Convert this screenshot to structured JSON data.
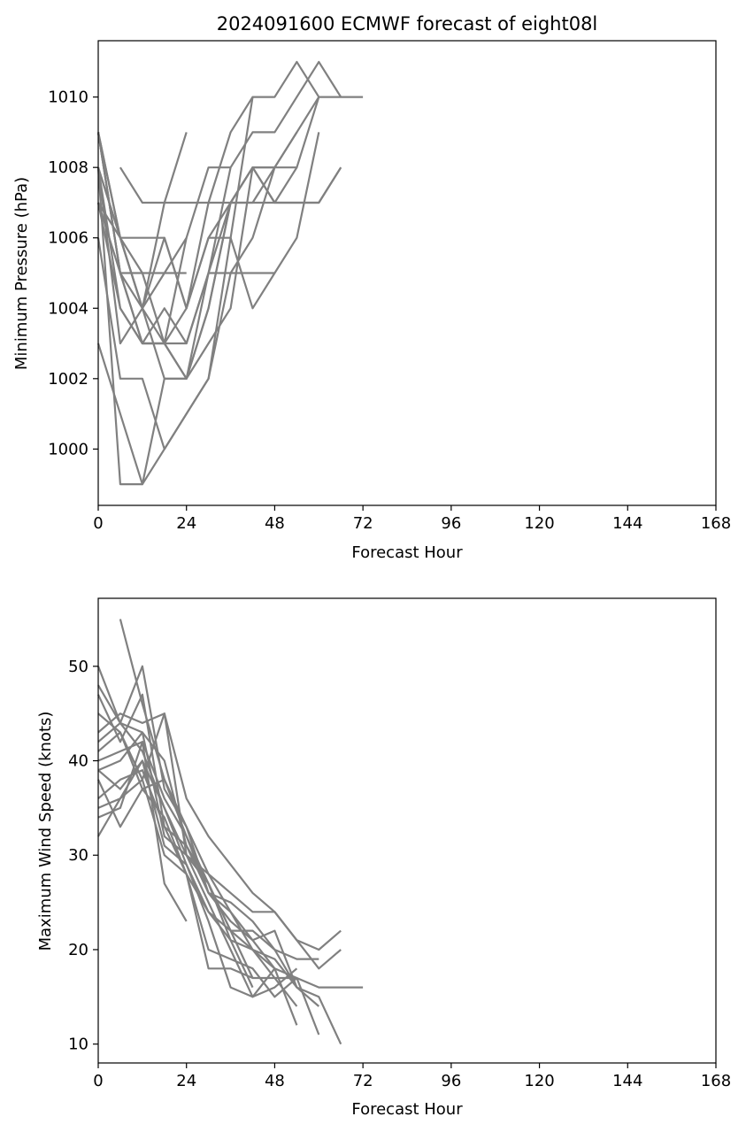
{
  "figure_title": "2024091600 ECMWF forecast of eight08l",
  "line_color": "#808080",
  "chart_data": [
    {
      "type": "line",
      "title": "2024091600 ECMWF forecast of eight08l",
      "xlabel": "Forecast Hour",
      "ylabel": "Minimum Pressure (hPa)",
      "xlim": [
        0,
        168
      ],
      "ylim": [
        998.4,
        1011.6
      ],
      "xticks": [
        0,
        24,
        48,
        72,
        96,
        120,
        144,
        168
      ],
      "yticks": [
        1000,
        1002,
        1004,
        1006,
        1008,
        1010
      ],
      "grid": false,
      "series": [
        {
          "x": [
            0,
            6,
            12,
            18,
            24,
            30,
            36,
            42,
            48,
            54,
            60,
            66
          ],
          "y": [
            1009,
            1005,
            1003,
            1003,
            1003,
            1005,
            1008,
            1009,
            1009,
            1010,
            1011,
            1010
          ]
        },
        {
          "x": [
            0,
            6,
            12,
            18,
            24,
            30,
            36,
            42,
            48,
            54,
            60,
            66,
            72
          ],
          "y": [
            1009,
            1006,
            1004,
            1002,
            1002,
            1004,
            1007,
            1007,
            1008,
            1009,
            1010,
            1010,
            1010
          ]
        },
        {
          "x": [
            0,
            6,
            12,
            18,
            24,
            30,
            36,
            42,
            48,
            54,
            60,
            66
          ],
          "y": [
            1008,
            1006,
            1006,
            1006,
            1004,
            1006,
            1007,
            1008,
            1007,
            1007,
            1007,
            1008
          ]
        },
        {
          "x": [
            0,
            6,
            12,
            18,
            24,
            30,
            36,
            42,
            48,
            54,
            60
          ],
          "y": [
            1007,
            1004,
            1003,
            1003,
            1004,
            1007,
            1009,
            1010,
            1010,
            1011,
            1010
          ]
        },
        {
          "x": [
            6,
            12,
            18,
            24,
            30,
            36,
            42,
            48,
            54,
            60,
            66
          ],
          "y": [
            1008,
            1007,
            1007,
            1007,
            1007,
            1007,
            1007,
            1007,
            1007,
            1007,
            1008
          ]
        },
        {
          "x": [
            0,
            6,
            12,
            18,
            24,
            30,
            36,
            42
          ],
          "y": [
            1006,
            1002,
            1002,
            1000,
            1001,
            1002,
            1006,
            1010
          ]
        },
        {
          "x": [
            0,
            6,
            12,
            18,
            24,
            30,
            36,
            42,
            48,
            54,
            60
          ],
          "y": [
            1008,
            999,
            999,
            1002,
            1002,
            1004,
            1007,
            1008,
            1008,
            1008,
            1010
          ]
        },
        {
          "x": [
            0,
            6,
            12,
            18,
            24,
            30,
            36,
            42,
            48,
            54
          ],
          "y": [
            1003,
            1001,
            999,
            1000,
            1001,
            1002,
            1005,
            1006,
            1008,
            1009
          ]
        },
        {
          "x": [
            0,
            6,
            12,
            18,
            24
          ],
          "y": [
            1007,
            1005,
            1005,
            1005,
            1005
          ]
        },
        {
          "x": [
            0,
            6,
            12,
            18,
            24,
            30,
            36,
            42,
            48
          ],
          "y": [
            1009,
            1006,
            1004,
            1003,
            1002,
            1005,
            1005,
            1005,
            1005
          ]
        },
        {
          "x": [
            0,
            6,
            12,
            18,
            24
          ],
          "y": [
            1008,
            1004,
            1003,
            1003,
            1006
          ]
        },
        {
          "x": [
            0,
            6,
            12,
            18,
            24,
            30,
            36,
            42,
            48,
            54,
            60
          ],
          "y": [
            1009,
            1005,
            1004,
            1006,
            1004,
            1006,
            1006,
            1004,
            1005,
            1006,
            1009
          ]
        },
        {
          "x": [
            0,
            6,
            12,
            18,
            24
          ],
          "y": [
            1007,
            1006,
            1004,
            1007,
            1009
          ]
        },
        {
          "x": [
            0,
            6,
            12,
            18,
            24,
            30,
            36
          ],
          "y": [
            1008,
            1003,
            1004,
            1005,
            1006,
            1008,
            1008
          ]
        },
        {
          "x": [
            0,
            6,
            12,
            18,
            24,
            30,
            36,
            42,
            48
          ],
          "y": [
            1008,
            1006,
            1005,
            1003,
            1002,
            1003,
            1004,
            1008,
            1008
          ]
        },
        {
          "x": [
            0,
            6,
            12,
            18,
            24,
            30,
            36,
            42,
            48,
            54
          ],
          "y": [
            1009,
            1005,
            1003,
            1004,
            1003,
            1005,
            1007,
            1008,
            1007,
            1008
          ]
        }
      ]
    },
    {
      "type": "line",
      "title": "",
      "xlabel": "Forecast Hour",
      "ylabel": "Maximum Wind Speed (knots)",
      "xlim": [
        0,
        168
      ],
      "ylim": [
        8,
        57.2
      ],
      "xticks": [
        0,
        24,
        48,
        72,
        96,
        120,
        144,
        168
      ],
      "yticks": [
        10,
        20,
        30,
        40,
        50
      ],
      "grid": false,
      "series": [
        {
          "x": [
            6,
            12,
            18,
            24,
            30,
            36,
            42
          ],
          "y": [
            55,
            46,
            38,
            32,
            27,
            22,
            17
          ]
        },
        {
          "x": [
            0,
            6,
            12,
            18,
            24,
            30,
            36,
            42,
            48,
            54
          ],
          "y": [
            50,
            44,
            41,
            35,
            29,
            24,
            22,
            20,
            18,
            12
          ]
        },
        {
          "x": [
            0,
            6,
            12,
            18,
            24,
            30,
            36,
            42,
            48,
            54,
            60,
            66,
            72
          ],
          "y": [
            48,
            44,
            43,
            40,
            31,
            26,
            23,
            21,
            18,
            17,
            16,
            16,
            16
          ]
        },
        {
          "x": [
            0,
            6,
            12,
            18,
            24,
            30,
            36,
            42,
            48,
            54,
            60,
            66
          ],
          "y": [
            47,
            42,
            47,
            33,
            31,
            27,
            22,
            22,
            20,
            16,
            15,
            10
          ]
        },
        {
          "x": [
            0,
            6,
            12,
            18,
            24,
            30,
            36,
            42,
            48,
            54,
            60,
            66
          ],
          "y": [
            45,
            43,
            38,
            45,
            36,
            32,
            29,
            26,
            24,
            21,
            20,
            22
          ]
        },
        {
          "x": [
            0,
            6,
            12,
            18,
            24,
            30,
            36,
            42,
            48,
            54,
            60,
            66
          ],
          "y": [
            43,
            45,
            44,
            45,
            30,
            28,
            26,
            24,
            24,
            21,
            18,
            20
          ]
        },
        {
          "x": [
            0,
            6,
            12,
            18,
            24,
            30,
            36,
            42,
            48,
            54,
            60
          ],
          "y": [
            42,
            44,
            50,
            37,
            33,
            28,
            24,
            21,
            22,
            16,
            14
          ]
        },
        {
          "x": [
            0,
            6,
            12,
            18,
            24,
            30,
            36,
            42,
            48,
            54,
            60
          ],
          "y": [
            40,
            41,
            42,
            36,
            32,
            26,
            25,
            23,
            20,
            19,
            19
          ]
        },
        {
          "x": [
            0,
            6,
            12,
            18,
            24,
            30,
            36,
            42,
            48,
            54,
            60
          ],
          "y": [
            39,
            40,
            43,
            32,
            30,
            27,
            21,
            20,
            17,
            17,
            11
          ]
        },
        {
          "x": [
            0,
            6,
            12,
            18,
            24,
            30,
            36,
            42
          ],
          "y": [
            38,
            33,
            37,
            34,
            28,
            24,
            21,
            16
          ]
        },
        {
          "x": [
            0,
            6,
            12,
            18,
            24,
            30,
            36,
            42,
            48,
            54
          ],
          "y": [
            36,
            38,
            39,
            33,
            28,
            20,
            19,
            18,
            15,
            17
          ]
        },
        {
          "x": [
            0,
            6,
            12,
            18,
            24,
            30,
            36,
            42,
            48,
            54
          ],
          "y": [
            35,
            36,
            40,
            31,
            29,
            23,
            16,
            15,
            16,
            18
          ]
        },
        {
          "x": [
            0,
            6,
            12,
            18,
            24
          ],
          "y": [
            34,
            35,
            42,
            27,
            23
          ]
        },
        {
          "x": [
            0,
            6,
            12,
            18,
            24,
            30,
            36,
            42,
            48,
            54
          ],
          "y": [
            32,
            36,
            38,
            30,
            28,
            18,
            18,
            17,
            17,
            14
          ]
        },
        {
          "x": [
            0,
            6,
            12,
            18,
            24,
            30,
            36,
            42,
            48
          ],
          "y": [
            39,
            37,
            40,
            35,
            30,
            25,
            20,
            15,
            18
          ]
        },
        {
          "x": [
            0,
            6,
            12,
            18,
            24,
            30,
            36,
            42,
            48,
            54
          ],
          "y": [
            41,
            43,
            37,
            38,
            33,
            26,
            24,
            20,
            19,
            16
          ]
        }
      ]
    }
  ]
}
